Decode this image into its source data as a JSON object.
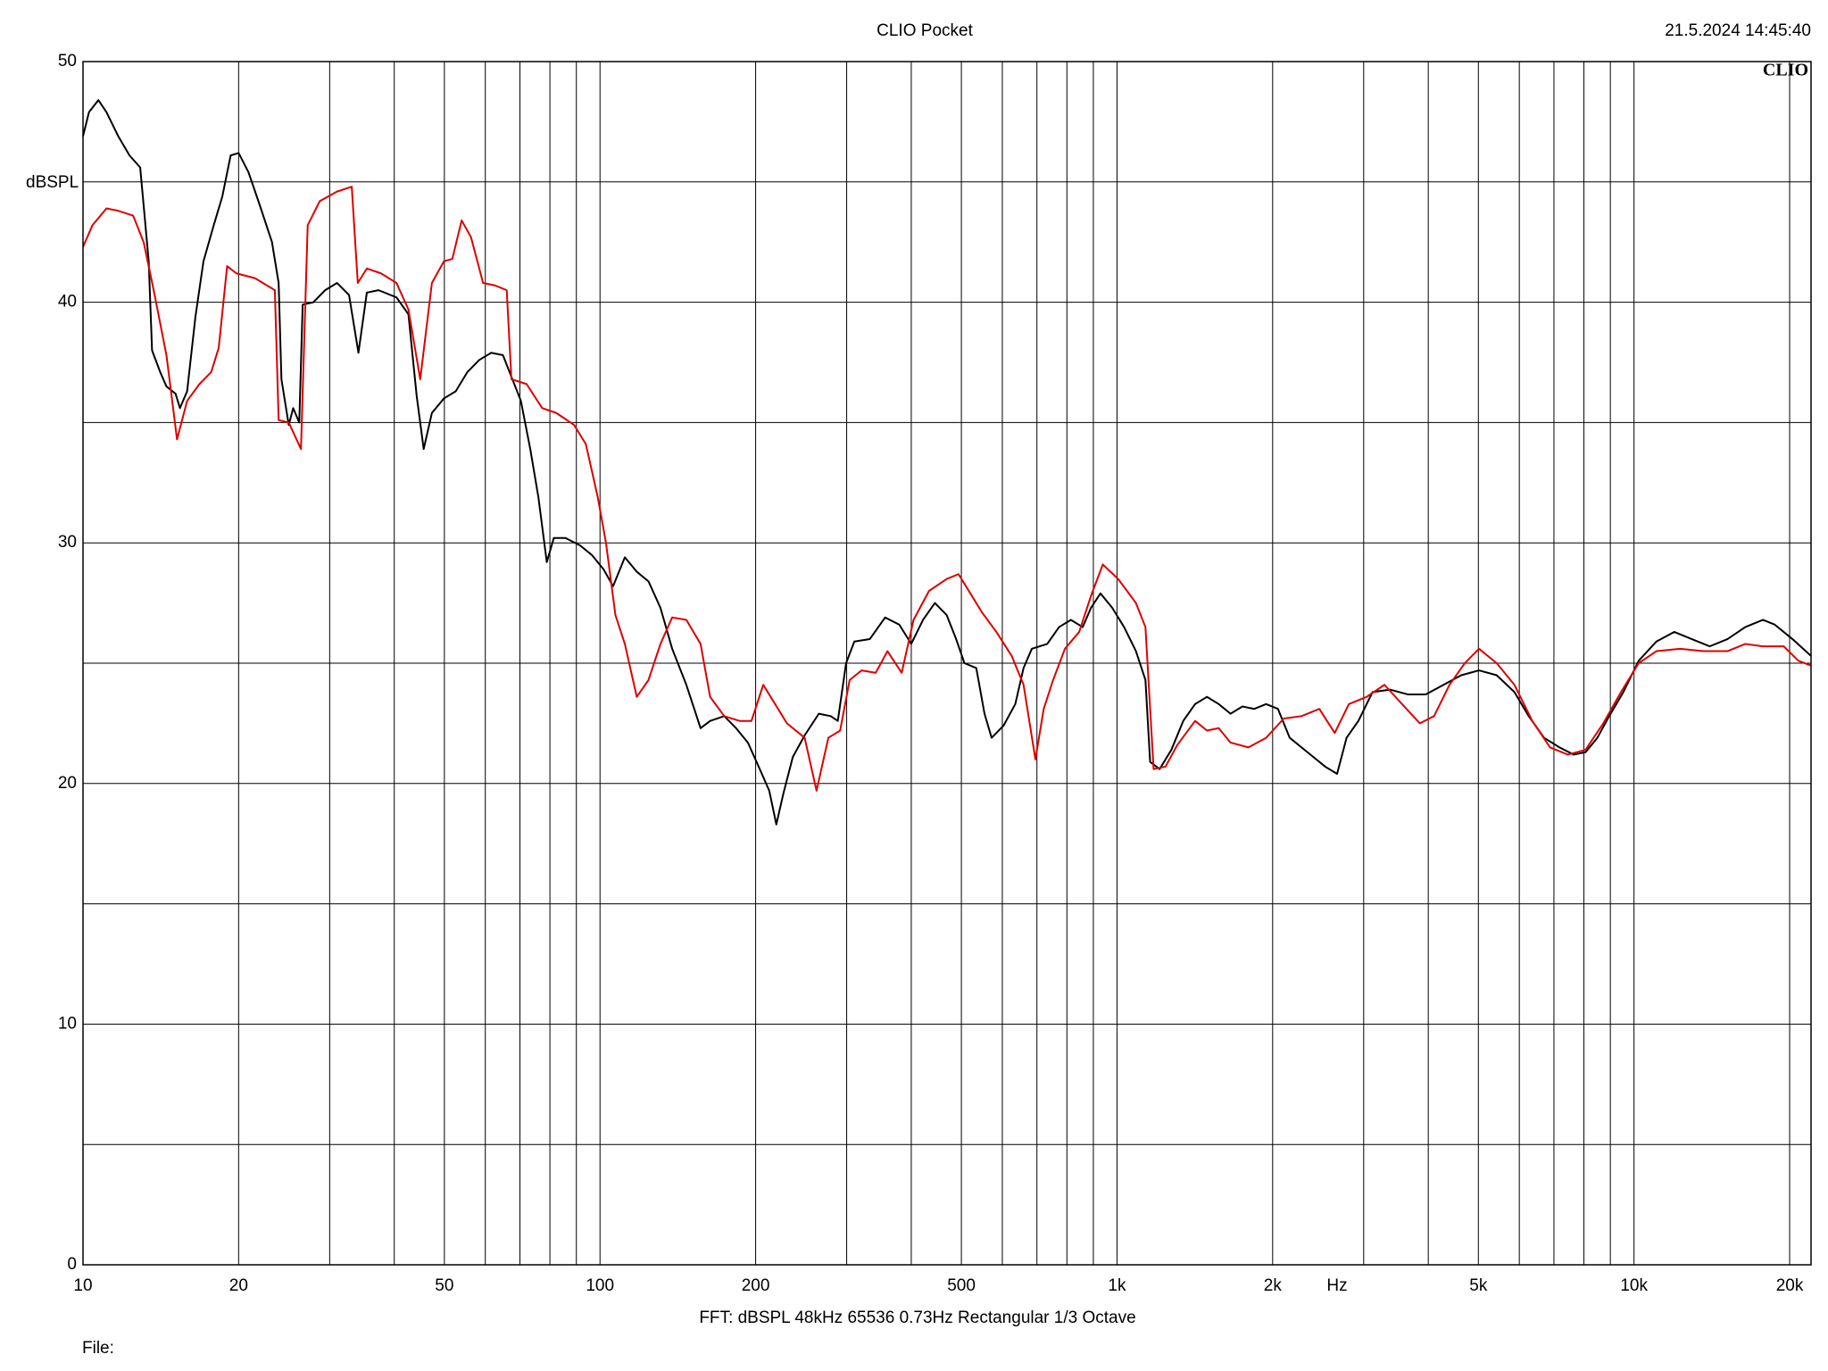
{
  "chart_data": {
    "type": "line",
    "title": "CLIO Pocket",
    "timestamp": "21.5.2024 14:45:40",
    "logo": "CLIO",
    "y_label": "dBSPL",
    "x_label": "Hz",
    "footer": "FFT:  dBSPL  48kHz  65536  0.73Hz  Rectangular  1/3 Octave",
    "file_label": "File:",
    "log_x": true,
    "grid": true,
    "xlim": [
      10,
      22000
    ],
    "ylim": [
      0,
      50
    ],
    "xticks": [
      10,
      20,
      50,
      100,
      200,
      500,
      {
        "value": 1000,
        "label": "1k"
      },
      {
        "value": 2000,
        "label": "2k"
      },
      {
        "value": 5000,
        "label": "5k"
      },
      {
        "value": 10000,
        "label": "10k"
      },
      {
        "value": 20000,
        "label": "20k"
      }
    ],
    "xgrid_minor": [
      30,
      40,
      60,
      70,
      80,
      90,
      300,
      400,
      600,
      700,
      800,
      900,
      3000,
      4000,
      6000,
      7000,
      8000,
      9000
    ],
    "yticks": [
      0,
      10,
      20,
      30,
      40,
      50
    ],
    "ygrid_minor": [
      5,
      15,
      25,
      35,
      45
    ],
    "series": [
      {
        "color": "#000000",
        "x": [
          10,
          10.27,
          10.71,
          11.1,
          11.7,
          12.3,
          12.9,
          13.4,
          13.6,
          14.1,
          14.5,
          15.1,
          15.4,
          15.9,
          16.5,
          17.1,
          17.9,
          18.6,
          19.3,
          20.0,
          20.9,
          22.0,
          23.2,
          23.9,
          24.2,
          25.0,
          25.5,
          26.2,
          26.6,
          27.9,
          29.4,
          31.0,
          32.7,
          34.1,
          35.4,
          37.3,
          40.4,
          42.6,
          44.2,
          45.6,
          47.3,
          49.9,
          52.6,
          55.4,
          58.4,
          61.6,
          64.9,
          67.4,
          70.3,
          73.3,
          76.0,
          78.9,
          81.4,
          85.8,
          91.4,
          96.4,
          101.6,
          106,
          111.7,
          117.8,
          124.1,
          130.9,
          137.9,
          146.9,
          156.5,
          163.3,
          173.9,
          183.3,
          193.2,
          203.7,
          212.5,
          219.3,
          226.4,
          236.0,
          248.8,
          265.0,
          279.4,
          288.4,
          299.2,
          310.4,
          332.5,
          356.0,
          379.3,
          399.9,
          421.5,
          444.3,
          468.3,
          488.5,
          506.9,
          534.3,
          554.3,
          572.1,
          603.1,
          635.7,
          659.6,
          684.4,
          732.9,
          772.5,
          814.3,
          858.3,
          890.6,
          928.9,
          979.1,
          1032,
          1088,
          1135,
          1159,
          1209,
          1274,
          1343,
          1416,
          1493,
          1573,
          1658,
          1748,
          1843,
          1943,
          2048,
          2158,
          2275,
          2398,
          2528,
          2665,
          2780,
          2930,
          3121,
          3379,
          3656,
          3956,
          4281,
          4633,
          5013,
          5425,
          5871,
          6257,
          6700,
          7177,
          7644,
          8058,
          8494,
          8954,
          9537,
          10210,
          11050,
          11960,
          12940,
          14010,
          15160,
          16410,
          17760,
          18720,
          20260,
          22000
        ],
        "values": [
          46.9,
          47.9,
          48.4,
          47.9,
          46.9,
          46.1,
          45.6,
          41.7,
          38.0,
          37.1,
          36.5,
          36.2,
          35.6,
          36.3,
          39.4,
          41.7,
          43.2,
          44.4,
          46.1,
          46.2,
          45.4,
          44.0,
          42.5,
          40.8,
          36.8,
          34.9,
          35.6,
          35.0,
          39.9,
          40.0,
          40.5,
          40.8,
          40.3,
          37.9,
          40.4,
          40.5,
          40.2,
          39.5,
          36.1,
          33.9,
          35.4,
          36.0,
          36.3,
          37.1,
          37.6,
          37.9,
          37.8,
          36.9,
          35.9,
          33.9,
          31.9,
          29.2,
          30.2,
          30.2,
          29.9,
          29.5,
          28.9,
          28.2,
          29.4,
          28.8,
          28.4,
          27.3,
          25.6,
          24.1,
          22.3,
          22.6,
          22.8,
          22.3,
          21.7,
          20.6,
          19.7,
          18.3,
          19.6,
          21.1,
          22.0,
          22.9,
          22.8,
          22.6,
          25.0,
          25.9,
          26.0,
          26.9,
          26.6,
          25.8,
          26.8,
          27.5,
          27.0,
          26.0,
          25.0,
          24.8,
          22.9,
          21.9,
          22.4,
          23.3,
          24.8,
          25.6,
          25.8,
          26.5,
          26.8,
          26.5,
          27.3,
          27.9,
          27.3,
          26.5,
          25.5,
          24.3,
          20.9,
          20.6,
          21.4,
          22.6,
          23.3,
          23.6,
          23.3,
          22.9,
          23.2,
          23.1,
          23.3,
          23.1,
          21.9,
          21.5,
          21.1,
          20.7,
          20.4,
          21.9,
          22.6,
          23.8,
          23.9,
          23.7,
          23.7,
          24.1,
          24.5,
          24.7,
          24.5,
          23.8,
          22.8,
          21.9,
          21.5,
          21.2,
          21.3,
          21.9,
          22.8,
          23.8,
          25.1,
          25.9,
          26.3,
          26.0,
          25.7,
          26.0,
          26.5,
          26.8,
          26.6,
          26.0,
          25.3
        ]
      },
      {
        "color": "#dd0000",
        "x": [
          10,
          10.43,
          11.1,
          11.7,
          12.5,
          13.1,
          13.7,
          14.5,
          15.2,
          15.9,
          16.8,
          17.7,
          18.3,
          19.0,
          19.8,
          21.5,
          23.5,
          23.9,
          25.0,
          26.4,
          27.2,
          28.7,
          31.0,
          33.1,
          34.0,
          35.4,
          37.7,
          40.4,
          42.6,
          44.9,
          47.3,
          49.9,
          51.8,
          54.0,
          56.3,
          59.4,
          62.6,
          66.0,
          67.4,
          72.1,
          77.3,
          82.3,
          89.1,
          93.9,
          99.0,
          102.7,
          107.1,
          111.7,
          117.8,
          124.1,
          130.9,
          137.9,
          146.9,
          156.5,
          163.3,
          173.9,
          186.2,
          196.3,
          206.9,
          218.1,
          229.9,
          248.8,
          262.3,
          276.5,
          291.4,
          304.0,
          320.5,
          341.4,
          359.8,
          383.3,
          404.1,
          432.8,
          468.3,
          493.6,
          520.4,
          548.5,
          584.3,
          625.7,
          659.6,
          695.3,
          721.5,
          752.3,
          793.1,
          845.0,
          890.6,
          938.7,
          1005,
          1088,
          1135,
          1177,
          1241,
          1308,
          1416,
          1493,
          1573,
          1658,
          1795,
          1943,
          2102,
          2275,
          2462,
          2637,
          2809,
          3040,
          3291,
          3559,
          3853,
          4104,
          4396,
          4707,
          5013,
          5425,
          5871,
          6357,
          6879,
          7445,
          8058,
          8721,
          9437,
          10210,
          11050,
          12280,
          13650,
          15160,
          16410,
          17760,
          19480,
          20800,
          22000
        ],
        "values": [
          42.3,
          43.2,
          43.9,
          43.8,
          43.6,
          42.5,
          40.5,
          37.8,
          34.3,
          35.9,
          36.6,
          37.1,
          38.1,
          41.5,
          41.2,
          41.0,
          40.5,
          35.1,
          35.0,
          33.9,
          43.2,
          44.2,
          44.6,
          44.8,
          40.8,
          41.4,
          41.2,
          40.8,
          39.7,
          36.8,
          40.8,
          41.7,
          41.8,
          43.4,
          42.7,
          40.8,
          40.7,
          40.5,
          36.8,
          36.6,
          35.6,
          35.4,
          34.9,
          34.1,
          31.9,
          30.0,
          27.0,
          25.8,
          23.6,
          24.3,
          25.8,
          26.9,
          26.8,
          25.8,
          23.6,
          22.8,
          22.6,
          22.6,
          24.1,
          23.3,
          22.5,
          21.9,
          19.7,
          21.9,
          22.2,
          24.3,
          24.7,
          24.6,
          25.5,
          24.6,
          26.8,
          28.0,
          28.5,
          28.7,
          27.9,
          27.1,
          26.3,
          25.3,
          24.1,
          21.0,
          23.1,
          24.3,
          25.6,
          26.3,
          27.8,
          29.1,
          28.5,
          27.5,
          26.5,
          20.6,
          20.7,
          21.6,
          22.6,
          22.2,
          22.3,
          21.7,
          21.5,
          21.9,
          22.7,
          22.8,
          23.1,
          22.1,
          23.3,
          23.6,
          24.1,
          23.3,
          22.5,
          22.8,
          24.1,
          25.0,
          25.6,
          25.0,
          24.1,
          22.6,
          21.5,
          21.2,
          21.4,
          22.5,
          23.8,
          25.0,
          25.5,
          25.6,
          25.5,
          25.5,
          25.8,
          25.7,
          25.7,
          25.1,
          24.9
        ]
      }
    ]
  }
}
